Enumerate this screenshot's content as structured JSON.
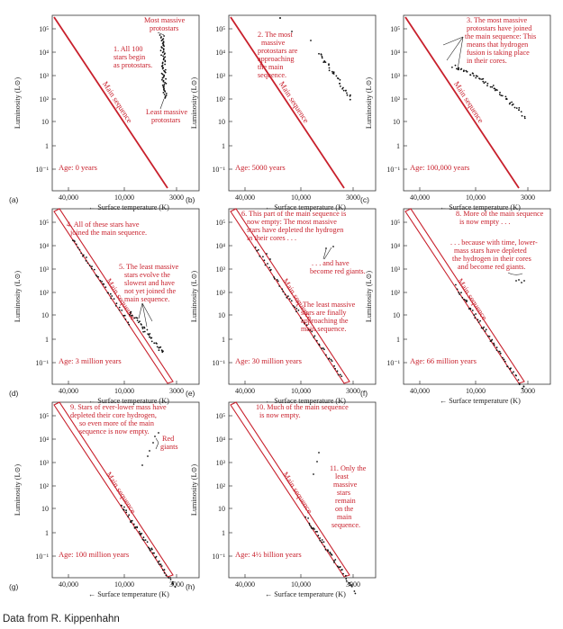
{
  "credit": "Data from R. Kippenhahn",
  "axis": {
    "ylabel": "Luminosity (L⊙)",
    "xlabel": "← Surface temperature (K)",
    "yticks": [
      "10⁵",
      "10⁴",
      "10³",
      "10²",
      "10",
      "1",
      "10⁻¹"
    ],
    "xticks": [
      "40,000",
      "10,000",
      "3000"
    ]
  },
  "main_sequence_label": "Main sequence",
  "panels": [
    {
      "label": "(a)",
      "age": "Age: 0 years",
      "annotations": [
        "Most massive",
        "protostars",
        "1. All 100",
        "stars begin",
        "as protostars.",
        "Least massive",
        "protostars"
      ]
    },
    {
      "label": "(b)",
      "age": "Age: 5000 years",
      "annotations": [
        "2. The most",
        "massive",
        "protostars are",
        "approaching",
        "the main",
        "sequence."
      ]
    },
    {
      "label": "(c)",
      "age": "Age: 100,000 years",
      "annotations": [
        "3. The most massive",
        "protostars have joined",
        "the main sequence: This",
        "means that hydrogen",
        "fusion is taking place",
        "in their cores."
      ]
    },
    {
      "label": "(d)",
      "age": "Age: 3 million years",
      "annotations": [
        "4. All of these stars have",
        "joined the main sequence.",
        "5. The least massive",
        "stars evolve the",
        "slowest and have",
        "not yet joined the",
        "main sequence."
      ]
    },
    {
      "label": "(e)",
      "age": "Age: 30 million years",
      "annotations": [
        "6. This part of the main sequence is",
        "now empty: The most massive",
        "stars have depleted the hydrogen",
        "in their cores . . .",
        ". . . and have",
        "become red giants.",
        "7. The least massive",
        "stars are finally",
        "approaching the",
        "main sequence."
      ]
    },
    {
      "label": "(f)",
      "age": "Age: 66 million years",
      "annotations": [
        "8. More of the main sequence",
        "is now empty . . .",
        ". . . because with time, lower-",
        "mass stars have depleted",
        "the hydrogen in their cores",
        "and become red giants."
      ]
    },
    {
      "label": "(g)",
      "age": "Age: 100 million years",
      "annotations": [
        "9. Stars of ever-lower mass have",
        "depleted their core hydrogen,",
        "so even more of the main",
        "sequence is now empty.",
        "Red",
        "giants"
      ]
    },
    {
      "label": "(h)",
      "age": "Age: 4½ billion years",
      "annotations": [
        "10. Much of the main sequence",
        "is now empty.",
        "11. Only the",
        "least",
        "massive",
        "stars",
        "remain",
        "on the",
        "main",
        "sequence."
      ]
    }
  ]
}
